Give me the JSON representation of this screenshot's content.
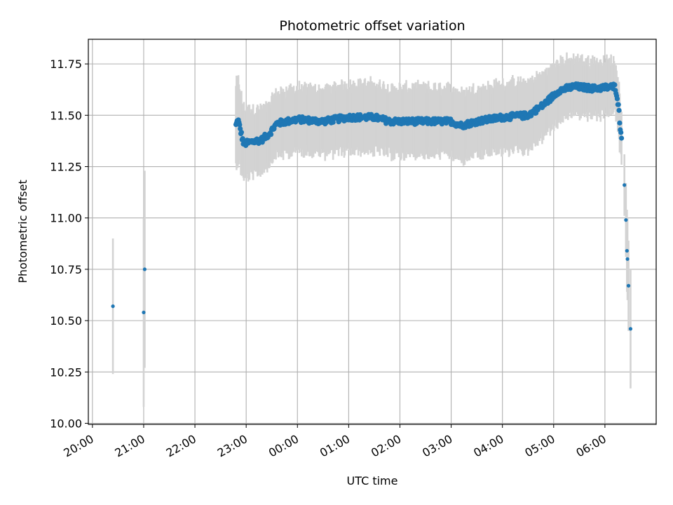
{
  "chart_data": {
    "type": "scatter",
    "title": "Photometric offset variation",
    "xlabel": "UTC time",
    "ylabel": "Photometric offset",
    "x_unit": "hours (UTC)",
    "x_ticks": [
      {
        "label": "20:00",
        "hours": 20
      },
      {
        "label": "21:00",
        "hours": 21
      },
      {
        "label": "22:00",
        "hours": 22
      },
      {
        "label": "23:00",
        "hours": 23
      },
      {
        "label": "00:00",
        "hours": 24
      },
      {
        "label": "01:00",
        "hours": 25
      },
      {
        "label": "02:00",
        "hours": 26
      },
      {
        "label": "03:00",
        "hours": 27
      },
      {
        "label": "04:00",
        "hours": 28
      },
      {
        "label": "05:00",
        "hours": 29
      },
      {
        "label": "06:00",
        "hours": 30
      }
    ],
    "y_ticks": [
      10.0,
      10.25,
      10.5,
      10.75,
      11.0,
      11.25,
      11.5,
      11.75
    ],
    "y_tick_labels": [
      "10.00",
      "10.25",
      "10.50",
      "10.75",
      "11.00",
      "11.25",
      "11.50",
      "11.75"
    ],
    "xlim": [
      19.92,
      31.0
    ],
    "ylim": [
      9.995,
      11.87
    ],
    "grid": true,
    "colors": {
      "points": "#1f77b4",
      "errorbars": "#d3d3d3",
      "grid": "#b0b0b0"
    },
    "point_series": [
      {
        "x": 20.4,
        "y": 10.57,
        "err": 0.33
      },
      {
        "x": 21.0,
        "y": 10.54,
        "err": 0.46
      },
      {
        "x": 21.02,
        "y": 10.75,
        "err": 0.48
      },
      {
        "x": 30.38,
        "y": 11.16,
        "err": 0.15
      },
      {
        "x": 30.41,
        "y": 10.99,
        "err": 0.18
      },
      {
        "x": 30.43,
        "y": 10.84,
        "err": 0.2
      },
      {
        "x": 30.44,
        "y": 10.8,
        "err": 0.2
      },
      {
        "x": 30.46,
        "y": 10.67,
        "err": 0.22
      },
      {
        "x": 30.5,
        "y": 10.46,
        "err": 0.29
      }
    ],
    "trend": [
      {
        "x": 22.8,
        "y": 11.45,
        "err": 0.2
      },
      {
        "x": 22.84,
        "y": 11.48,
        "err": 0.2
      },
      {
        "x": 22.95,
        "y": 11.36,
        "err": 0.17
      },
      {
        "x": 23.1,
        "y": 11.37,
        "err": 0.16
      },
      {
        "x": 23.3,
        "y": 11.38,
        "err": 0.15
      },
      {
        "x": 23.45,
        "y": 11.41,
        "err": 0.14
      },
      {
        "x": 23.6,
        "y": 11.46,
        "err": 0.15
      },
      {
        "x": 24.0,
        "y": 11.48,
        "err": 0.15
      },
      {
        "x": 24.5,
        "y": 11.47,
        "err": 0.15
      },
      {
        "x": 25.0,
        "y": 11.49,
        "err": 0.16
      },
      {
        "x": 25.5,
        "y": 11.49,
        "err": 0.16
      },
      {
        "x": 25.8,
        "y": 11.47,
        "err": 0.16
      },
      {
        "x": 26.3,
        "y": 11.47,
        "err": 0.16
      },
      {
        "x": 27.0,
        "y": 11.47,
        "err": 0.16
      },
      {
        "x": 27.2,
        "y": 11.45,
        "err": 0.16
      },
      {
        "x": 27.5,
        "y": 11.47,
        "err": 0.16
      },
      {
        "x": 28.0,
        "y": 11.49,
        "err": 0.16
      },
      {
        "x": 28.5,
        "y": 11.5,
        "err": 0.16
      },
      {
        "x": 28.8,
        "y": 11.55,
        "err": 0.15
      },
      {
        "x": 29.1,
        "y": 11.62,
        "err": 0.14
      },
      {
        "x": 29.4,
        "y": 11.64,
        "err": 0.13
      },
      {
        "x": 29.8,
        "y": 11.63,
        "err": 0.13
      },
      {
        "x": 30.2,
        "y": 11.64,
        "err": 0.12
      },
      {
        "x": 30.24,
        "y": 11.59,
        "err": 0.12
      },
      {
        "x": 30.27,
        "y": 11.53,
        "err": 0.12
      },
      {
        "x": 30.3,
        "y": 11.44,
        "err": 0.13
      },
      {
        "x": 30.33,
        "y": 11.37,
        "err": 0.14
      }
    ]
  }
}
